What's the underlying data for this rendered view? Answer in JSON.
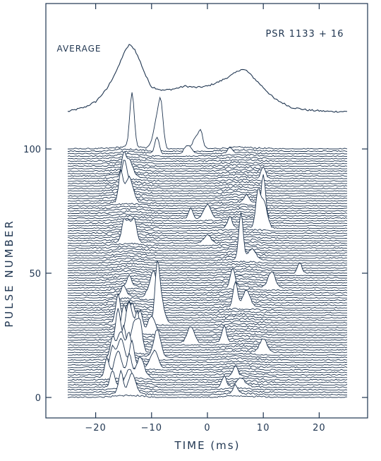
{
  "chart_data": {
    "type": "line",
    "title": "PSR 1133 + 16",
    "average_label": "AVERAGE",
    "xlabel": "TIME (ms)",
    "ylabel": "PULSE NUMBER",
    "xlim": [
      -28,
      28
    ],
    "x_ticks": [
      -20,
      -10,
      0,
      10,
      20
    ],
    "x_tick_labels": [
      "−20",
      "−10",
      "0",
      "10",
      "20"
    ],
    "ylim": [
      0,
      100
    ],
    "y_ticks": [
      0,
      50,
      100
    ],
    "y_tick_labels": [
      "0",
      "50",
      "100"
    ],
    "trace_x_range": [
      -25,
      25
    ],
    "pulse_count": 101,
    "grid": false,
    "colors": {
      "ink": "#1f3550",
      "background": "#ffffff"
    },
    "average_profile": {
      "x": [
        -25,
        -22,
        -20,
        -18,
        -16,
        -15,
        -14,
        -13,
        -12,
        -11,
        -10,
        -8,
        -6,
        -4,
        -2,
        0,
        2,
        4,
        5,
        6,
        7,
        8,
        10,
        12,
        15,
        18,
        22,
        25
      ],
      "y": [
        0.0,
        0.06,
        0.14,
        0.32,
        0.62,
        0.82,
        0.95,
        0.88,
        0.7,
        0.5,
        0.35,
        0.3,
        0.32,
        0.36,
        0.34,
        0.36,
        0.42,
        0.5,
        0.55,
        0.6,
        0.58,
        0.5,
        0.34,
        0.18,
        0.06,
        0.02,
        0.0,
        0.0
      ]
    },
    "single_pulses": [
      {
        "pulse": 100,
        "x": [
          -13.5,
          -9.0,
          -8.3,
          -2.0,
          -1.2
        ],
        "y": [
          1.0,
          0.55,
          0.6,
          0.2,
          0.25
        ]
      },
      {
        "pulse": 98,
        "x": [
          -9.0,
          -3.5,
          4.0
        ],
        "y": [
          0.3,
          0.15,
          0.1
        ]
      },
      {
        "pulse": 88,
        "x": [
          -15.0,
          -14.0,
          10.0
        ],
        "y": [
          0.35,
          0.3,
          0.2
        ]
      },
      {
        "pulse": 82,
        "x": [
          -15.0,
          -14.5
        ],
        "y": [
          0.35,
          0.3
        ]
      },
      {
        "pulse": 78,
        "x": [
          -15.5,
          -14.0,
          7.0
        ],
        "y": [
          0.55,
          0.45,
          0.15
        ]
      },
      {
        "pulse": 72,
        "x": [
          10.0,
          0.0,
          -3.0
        ],
        "y": [
          0.8,
          0.25,
          0.2
        ]
      },
      {
        "pulse": 68,
        "x": [
          9.0,
          10.0,
          4.0
        ],
        "y": [
          0.55,
          0.5,
          0.2
        ]
      },
      {
        "pulse": 62,
        "x": [
          -15.0,
          -14.0,
          -13.0,
          0.0
        ],
        "y": [
          0.3,
          0.35,
          0.3,
          0.15
        ]
      },
      {
        "pulse": 55,
        "x": [
          6.0,
          8.0
        ],
        "y": [
          0.85,
          0.2
        ]
      },
      {
        "pulse": 50,
        "x": [
          16.5
        ],
        "y": [
          0.2
        ]
      },
      {
        "pulse": 44,
        "x": [
          4.5,
          11.5,
          -14.0
        ],
        "y": [
          0.35,
          0.3,
          0.2
        ]
      },
      {
        "pulse": 40,
        "x": [
          -15.0,
          -10.0,
          -9.5
        ],
        "y": [
          0.2,
          0.3,
          0.25
        ]
      },
      {
        "pulse": 36,
        "x": [
          5.0,
          7.0
        ],
        "y": [
          0.45,
          0.3
        ]
      },
      {
        "pulse": 30,
        "x": [
          -16.0,
          -14.0,
          -9.0,
          -8.5
        ],
        "y": [
          0.5,
          0.35,
          0.75,
          0.5
        ]
      },
      {
        "pulse": 26,
        "x": [
          -15.0,
          -13.5,
          -12.0,
          -10.0
        ],
        "y": [
          0.45,
          0.5,
          0.35,
          0.3
        ]
      },
      {
        "pulse": 22,
        "x": [
          -16.0,
          -14.0,
          -12.5,
          -3.0,
          3.0
        ],
        "y": [
          0.6,
          0.7,
          0.5,
          0.3,
          0.3
        ]
      },
      {
        "pulse": 18,
        "x": [
          -15.0,
          -13.0,
          -12.0,
          10.0
        ],
        "y": [
          0.45,
          0.55,
          0.4,
          0.25
        ]
      },
      {
        "pulse": 16,
        "x": [
          -17.0,
          -15.5,
          -14.0,
          -9.0
        ],
        "y": [
          0.35,
          0.45,
          0.4,
          0.5
        ]
      },
      {
        "pulse": 12,
        "x": [
          -17.0,
          -15.5,
          -13.5,
          -9.5
        ],
        "y": [
          0.35,
          0.5,
          0.45,
          0.3
        ]
      },
      {
        "pulse": 8,
        "x": [
          -18.0,
          -16.0,
          -14.0,
          -12.0,
          5.0
        ],
        "y": [
          0.35,
          0.45,
          0.4,
          0.35,
          0.2
        ]
      },
      {
        "pulse": 4,
        "x": [
          -17.0,
          -14.0,
          3.0,
          6.0
        ],
        "y": [
          0.3,
          0.3,
          0.2,
          0.15
        ]
      },
      {
        "pulse": 1,
        "x": [
          -15.5,
          -13.5,
          5.0
        ],
        "y": [
          0.4,
          0.35,
          0.15
        ]
      }
    ]
  }
}
